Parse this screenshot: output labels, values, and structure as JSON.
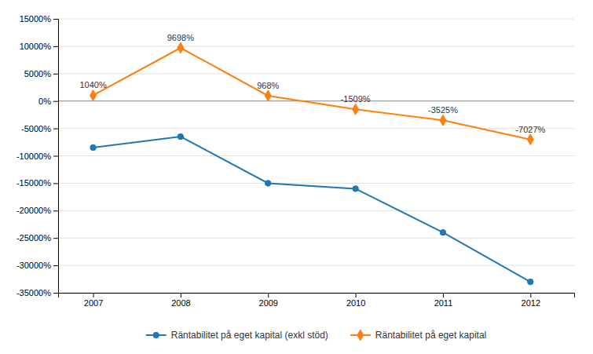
{
  "chart_data": {
    "type": "line",
    "x": [
      2007,
      2008,
      2009,
      2010,
      2011,
      2012
    ],
    "xlim": [
      2006.6,
      2012.5
    ],
    "xticks": [
      2007,
      2008,
      2009,
      2010,
      2011,
      2012
    ],
    "ylim": [
      -35000,
      15000
    ],
    "yticks": [
      {
        "value": -35000,
        "label": "-35000%"
      },
      {
        "value": -30000,
        "label": "-30000%"
      },
      {
        "value": -25000,
        "label": "-25000%"
      },
      {
        "value": -20000,
        "label": "-20000%"
      },
      {
        "value": -15000,
        "label": "-15000%"
      },
      {
        "value": -10000,
        "label": "-10000%"
      },
      {
        "value": -5000,
        "label": "-5000%"
      },
      {
        "value": 0,
        "label": "0%"
      },
      {
        "value": 5000,
        "label": "5000%"
      },
      {
        "value": 10000,
        "label": "10000%"
      },
      {
        "value": 15000,
        "label": "15000%"
      }
    ],
    "grid": true,
    "legend": "bottom",
    "series": [
      {
        "name": "Räntabilitet på eget kapital (exkl stöd)",
        "values": [
          -8500,
          -6500,
          -15000,
          -16000,
          -24000,
          -33000
        ],
        "marker": "circle",
        "line_style": "solid"
      },
      {
        "name": "Räntabilitet på eget kapital",
        "values": [
          1040,
          9698,
          968,
          -1509,
          -3525,
          -7027
        ],
        "value_labels": [
          "1040%",
          "9698%",
          "968%",
          "-1509%",
          "-3525%",
          "-7027%"
        ],
        "data_labels": true,
        "marker": "diamond",
        "line_style": "solid"
      }
    ]
  }
}
